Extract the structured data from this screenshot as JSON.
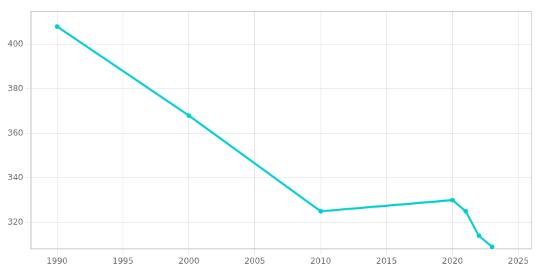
{
  "chart_data": {
    "type": "line",
    "x": [
      1990,
      2000,
      2010,
      2020,
      2021,
      2022,
      2023
    ],
    "values": [
      408,
      368,
      325,
      330,
      325,
      314,
      309
    ],
    "color": "#00CED1",
    "marker": "circle",
    "line_style": "solid",
    "xlim": [
      1988,
      2026
    ],
    "xticks": [
      1990,
      1995,
      2000,
      2005,
      2010,
      2015,
      2020,
      2025
    ],
    "ylim": [
      308,
      415
    ],
    "yticks": [
      320,
      340,
      360,
      380,
      400
    ],
    "grid": true
  }
}
